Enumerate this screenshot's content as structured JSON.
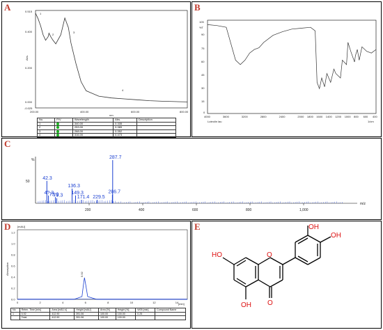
{
  "panels": {
    "A": {
      "label": "A",
      "yaxis_label": "Abs.",
      "xaxis_label": "nm.",
      "yticks": [
        "0.515",
        "0.400",
        "0.200",
        "0.000",
        "-0.025"
      ],
      "xticks": [
        "200.00",
        "400.00",
        "600.00",
        "800.00"
      ],
      "peak_labels": [
        "1",
        "2",
        "3",
        "4"
      ],
      "table": {
        "headers": [
          "No.",
          "P/V",
          "Wavelength",
          "Abs.",
          "Description"
        ],
        "rows": [
          [
            "1",
            "",
            "340.00",
            "0.335",
            ""
          ],
          [
            "2",
            "",
            "253.00",
            "0.389",
            ""
          ],
          [
            "3",
            "",
            "268.00",
            "0.352",
            ""
          ],
          [
            "4",
            "",
            "316.00",
            "0.473",
            ""
          ]
        ]
      }
    },
    "B": {
      "label": "B",
      "ylabel": "%T",
      "xlabel_left": "Luteolin lau",
      "xlabel_right": "1/cm",
      "yticks": [
        "105",
        "90",
        "75",
        "60",
        "45",
        "30",
        "15",
        "0"
      ],
      "xticks": [
        "4000",
        "3600",
        "3200",
        "2800",
        "2400",
        "2000",
        "1800",
        "1600",
        "1400",
        "1200",
        "1000",
        "800",
        "600",
        "400"
      ]
    },
    "C": {
      "label": "C",
      "ylabel": "%",
      "xlabel": "m/z",
      "yticks": [
        "50"
      ],
      "xticks": [
        "200",
        "400",
        "600",
        "800",
        "1,000"
      ],
      "peak_labels": [
        "287.7",
        "42.3",
        "136.3",
        "4?.3",
        "73.9",
        "79.3",
        "149.3",
        "171.4",
        "229.5",
        "286.7"
      ]
    },
    "D": {
      "label": "D",
      "ylabel": "Absorption",
      "xlabel": "[min]",
      "yunit": "[mAU]",
      "yticks": [
        "1.2",
        "1.0",
        "0.8",
        "0.6",
        "0.4",
        "0.2",
        "0.0"
      ],
      "xticks": [
        "0",
        "2",
        "4",
        "6",
        "8",
        "10",
        "12",
        "14"
      ],
      "peak_label": "5.92",
      "table": {
        "headers": [
          "No",
          "Reten. Time [min]",
          "Area [mAU.s]",
          "Height [mAU]",
          "Area [%]",
          "Height [%]",
          "W05 [min]",
          "Compound Name"
        ],
        "rows": [
          [
            "1",
            "5.92",
            "412.90",
            "391.06",
            "100.00",
            "100.00",
            "0.25",
            ""
          ],
          [
            "",
            "Total",
            "412.90",
            "391.06",
            "100.00",
            "100.00",
            "",
            ""
          ]
        ]
      }
    },
    "E": {
      "label": "E",
      "atoms": [
        "OH",
        "OH",
        "HO",
        "O",
        "OH",
        "O"
      ]
    }
  },
  "chart_data": [
    {
      "type": "line",
      "title": "",
      "xlabel": "nm.",
      "ylabel": "Abs.",
      "xlim": [
        200,
        800
      ],
      "ylim": [
        -0.025,
        0.515
      ],
      "series": [
        {
          "x": [
            200,
            210,
            220,
            230,
            240,
            250,
            253,
            260,
            268,
            280,
            300,
            316,
            330,
            340,
            360,
            380,
            400,
            450,
            500,
            550,
            600,
            650,
            700,
            750,
            800
          ],
          "y": [
            0.5,
            0.47,
            0.43,
            0.38,
            0.35,
            0.37,
            0.389,
            0.37,
            0.352,
            0.33,
            0.38,
            0.473,
            0.42,
            0.335,
            0.22,
            0.12,
            0.07,
            0.04,
            0.03,
            0.025,
            0.02,
            0.015,
            0.012,
            0.01,
            0.008
          ]
        }
      ]
    },
    {
      "type": "line",
      "title": "",
      "xlabel": "1/cm",
      "ylabel": "%T",
      "xlim": [
        4000,
        400
      ],
      "ylim": [
        0,
        105
      ],
      "series": [
        {
          "x": [
            4000,
            3800,
            3600,
            3400,
            3300,
            3200,
            3100,
            3000,
            2900,
            2800,
            2600,
            2400,
            2200,
            2000,
            1800,
            1700,
            1660,
            1610,
            1560,
            1500,
            1450,
            1370,
            1300,
            1260,
            1160,
            1120,
            1030,
            1000,
            940,
            860,
            840,
            800,
            760,
            700,
            600,
            500,
            400
          ],
          "y": [
            100,
            99,
            97,
            60,
            55,
            60,
            68,
            72,
            74,
            80,
            88,
            92,
            95,
            96,
            97,
            93,
            35,
            28,
            40,
            30,
            45,
            35,
            50,
            45,
            40,
            60,
            55,
            80,
            70,
            58,
            65,
            72,
            60,
            75,
            70,
            68,
            72
          ]
        }
      ]
    },
    {
      "type": "bar",
      "title": "",
      "xlabel": "m/z",
      "ylabel": "%",
      "xlim": [
        0,
        1200
      ],
      "ylim": [
        0,
        100
      ],
      "x": [
        42.3,
        48.3,
        73.9,
        79.3,
        136.3,
        149.3,
        171.4,
        229.5,
        286.7,
        287.7
      ],
      "values": [
        52,
        18,
        14,
        12,
        34,
        18,
        8,
        8,
        20,
        100
      ]
    },
    {
      "type": "line",
      "title": "",
      "xlabel": "[min]",
      "ylabel": "Absorption",
      "xlim": [
        0,
        15
      ],
      "ylim": [
        0,
        1.25
      ],
      "series": [
        {
          "x": [
            0,
            5.0,
            5.7,
            5.85,
            5.92,
            6.0,
            6.2,
            7.0,
            15
          ],
          "y": [
            0,
            0,
            0.05,
            0.3,
            0.39,
            0.3,
            0.05,
            0,
            0
          ]
        }
      ]
    }
  ]
}
